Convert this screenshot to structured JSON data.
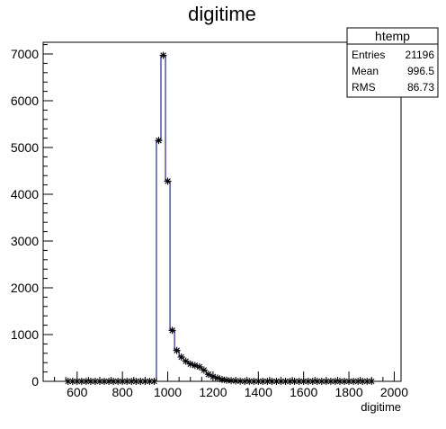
{
  "chart_data": {
    "type": "histogram",
    "title": "digitime",
    "xlabel": "digitime",
    "ylabel": "",
    "xlim": [
      450,
      2030
    ],
    "ylim": [
      0,
      7250
    ],
    "x_ticks": [
      600,
      800,
      1000,
      1200,
      1400,
      1600,
      1800,
      2000
    ],
    "y_ticks": [
      0,
      1000,
      2000,
      3000,
      4000,
      5000,
      6000,
      7000
    ],
    "grid": false,
    "line_color": "#000080",
    "marker": "asterisk",
    "stats_box": {
      "title": "htemp",
      "rows": [
        {
          "label": "Entries",
          "value": "21196"
        },
        {
          "label": "Mean",
          "value": "996.5"
        },
        {
          "label": "RMS",
          "value": "86.73"
        }
      ]
    },
    "bins": [
      {
        "x": 560,
        "y": 0
      },
      {
        "x": 580,
        "y": 0
      },
      {
        "x": 600,
        "y": 0
      },
      {
        "x": 620,
        "y": 0
      },
      {
        "x": 640,
        "y": 0
      },
      {
        "x": 660,
        "y": 0
      },
      {
        "x": 680,
        "y": 0
      },
      {
        "x": 700,
        "y": 0
      },
      {
        "x": 720,
        "y": 0
      },
      {
        "x": 740,
        "y": 0
      },
      {
        "x": 760,
        "y": 0
      },
      {
        "x": 780,
        "y": 0
      },
      {
        "x": 800,
        "y": 0
      },
      {
        "x": 820,
        "y": 0
      },
      {
        "x": 840,
        "y": 0
      },
      {
        "x": 860,
        "y": 0
      },
      {
        "x": 880,
        "y": 0
      },
      {
        "x": 900,
        "y": 0
      },
      {
        "x": 920,
        "y": 0
      },
      {
        "x": 940,
        "y": 0
      },
      {
        "x": 960,
        "y": 5150
      },
      {
        "x": 980,
        "y": 6970
      },
      {
        "x": 1000,
        "y": 4280
      },
      {
        "x": 1020,
        "y": 1090
      },
      {
        "x": 1040,
        "y": 660
      },
      {
        "x": 1060,
        "y": 520
      },
      {
        "x": 1080,
        "y": 430
      },
      {
        "x": 1100,
        "y": 370
      },
      {
        "x": 1120,
        "y": 340
      },
      {
        "x": 1140,
        "y": 310
      },
      {
        "x": 1160,
        "y": 240
      },
      {
        "x": 1180,
        "y": 150
      },
      {
        "x": 1200,
        "y": 100
      },
      {
        "x": 1220,
        "y": 70
      },
      {
        "x": 1240,
        "y": 40
      },
      {
        "x": 1260,
        "y": 25
      },
      {
        "x": 1280,
        "y": 15
      },
      {
        "x": 1300,
        "y": 10
      },
      {
        "x": 1320,
        "y": 5
      },
      {
        "x": 1340,
        "y": 0
      },
      {
        "x": 1360,
        "y": 0
      },
      {
        "x": 1380,
        "y": 0
      },
      {
        "x": 1400,
        "y": 0
      },
      {
        "x": 1420,
        "y": 0
      },
      {
        "x": 1440,
        "y": 0
      },
      {
        "x": 1460,
        "y": 0
      },
      {
        "x": 1480,
        "y": 0
      },
      {
        "x": 1500,
        "y": 0
      },
      {
        "x": 1520,
        "y": 0
      },
      {
        "x": 1540,
        "y": 0
      },
      {
        "x": 1560,
        "y": 0
      },
      {
        "x": 1580,
        "y": 0
      },
      {
        "x": 1600,
        "y": 0
      },
      {
        "x": 1620,
        "y": 0
      },
      {
        "x": 1640,
        "y": 0
      },
      {
        "x": 1660,
        "y": 0
      },
      {
        "x": 1680,
        "y": 0
      },
      {
        "x": 1700,
        "y": 0
      },
      {
        "x": 1720,
        "y": 0
      },
      {
        "x": 1740,
        "y": 0
      },
      {
        "x": 1760,
        "y": 0
      },
      {
        "x": 1780,
        "y": 0
      },
      {
        "x": 1800,
        "y": 0
      },
      {
        "x": 1820,
        "y": 0
      },
      {
        "x": 1840,
        "y": 0
      },
      {
        "x": 1860,
        "y": 0
      },
      {
        "x": 1880,
        "y": 0
      },
      {
        "x": 1900,
        "y": 0
      }
    ]
  }
}
